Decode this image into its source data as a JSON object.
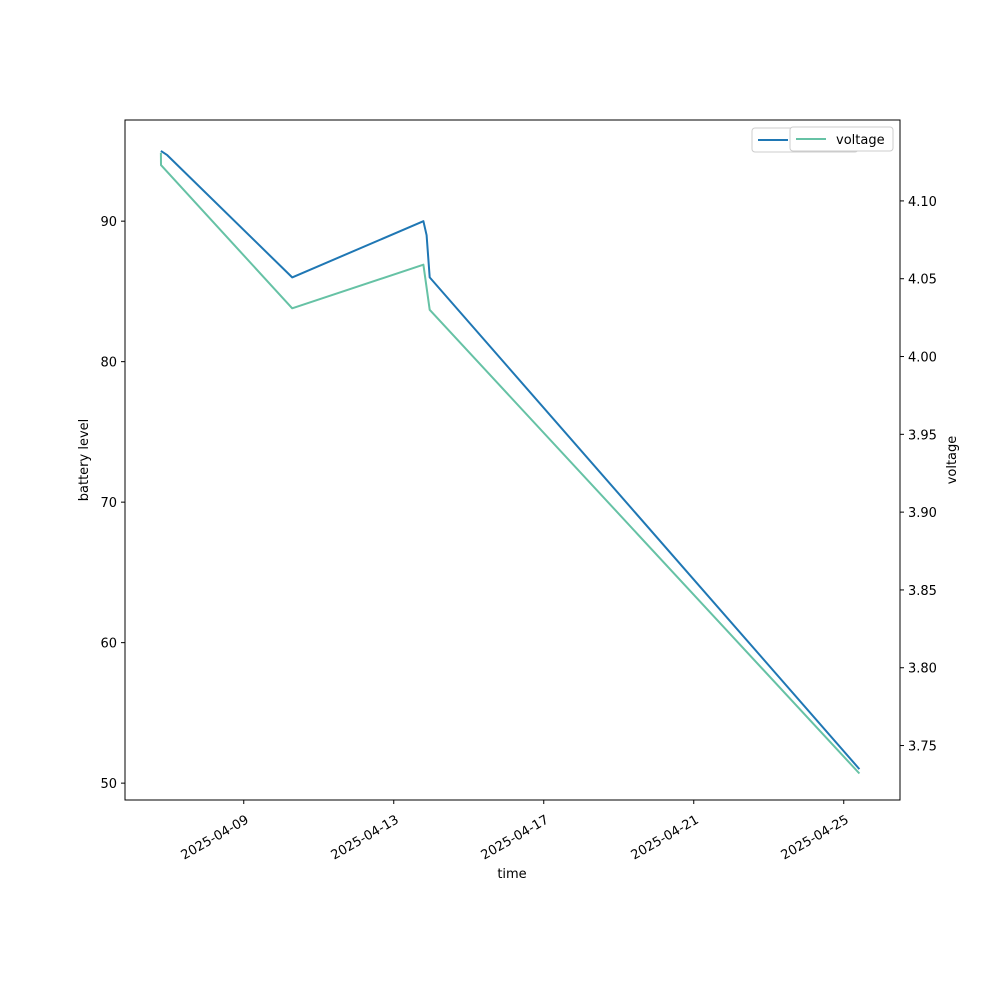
{
  "colors": {
    "battery": "#1f77b4",
    "voltage": "#66c2a5",
    "axis": "#000000",
    "background": "#ffffff"
  },
  "chart_data": {
    "type": "line",
    "xlabel": "time",
    "ylabel_left": "battery level",
    "ylabel_right": "voltage",
    "x_ticks": [
      "2025-04-09",
      "2025-04-13",
      "2025-04-17",
      "2025-04-21",
      "2025-04-25"
    ],
    "x_range": [
      "2025-04-05T20:00",
      "2025-04-26T12:00"
    ],
    "y_left_range": [
      48.8,
      97.2
    ],
    "y_left_ticks": [
      50,
      60,
      70,
      80,
      90
    ],
    "y_right_range": [
      3.715,
      4.152
    ],
    "y_right_ticks": [
      "3.75",
      "3.80",
      "3.85",
      "3.90",
      "3.95",
      "4.00",
      "4.05",
      "4.10"
    ],
    "grid": false,
    "legends": [
      {
        "placement": "top-right",
        "entries": [
          "battery"
        ]
      },
      {
        "placement": "top-right",
        "entries": [
          "voltage"
        ]
      }
    ],
    "series": [
      {
        "name": "battery",
        "axis": "left",
        "points": [
          {
            "x": "2025-04-06T19:00",
            "y": 95.0
          },
          {
            "x": "2025-04-06T23:00",
            "y": 94.7
          },
          {
            "x": "2025-04-10T07:00",
            "y": 86.0
          },
          {
            "x": "2025-04-13T19:00",
            "y": 90.0
          },
          {
            "x": "2025-04-13T21:00",
            "y": 89.0
          },
          {
            "x": "2025-04-13T23:00",
            "y": 86.0
          },
          {
            "x": "2025-04-25T10:00",
            "y": 51.0
          }
        ]
      },
      {
        "name": "voltage",
        "axis": "right",
        "points": [
          {
            "x": "2025-04-06T19:00",
            "y": 4.131
          },
          {
            "x": "2025-04-06T19:01",
            "y": 4.123
          },
          {
            "x": "2025-04-10T07:00",
            "y": 4.031
          },
          {
            "x": "2025-04-13T19:00",
            "y": 4.059
          },
          {
            "x": "2025-04-13T23:00",
            "y": 4.03
          },
          {
            "x": "2025-04-25T10:00",
            "y": 3.732
          }
        ]
      }
    ]
  }
}
